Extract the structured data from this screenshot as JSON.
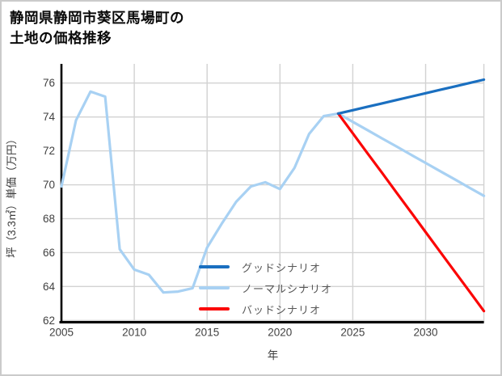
{
  "title": {
    "line1": "静岡県静岡市葵区馬場町の",
    "line2": "土地の価格推移"
  },
  "axes": {
    "x_label": "年",
    "y_label": "坪（3.3㎡）単価（万円）",
    "x_ticks": [
      2005,
      2010,
      2015,
      2020,
      2025,
      2030
    ],
    "y_ticks": [
      62,
      64,
      66,
      68,
      70,
      72,
      74,
      76
    ]
  },
  "legend": {
    "items": [
      {
        "label": "グッドシナリオ",
        "color": "#1a6fc0"
      },
      {
        "label": "ノーマルシナリオ",
        "color": "#a8d1f3"
      },
      {
        "label": "バッドシナリオ",
        "color": "#fb0505"
      }
    ]
  },
  "colors": {
    "grid": "#d2d2d2",
    "spine": "#000000",
    "tick_text": "#414141",
    "background": "#ffffff"
  },
  "chart_data": {
    "type": "line",
    "title": "静岡県静岡市葵区馬場町の土地の価格推移",
    "xlabel": "年",
    "ylabel": "坪（3.3㎡）単価（万円）",
    "x_range": [
      2005,
      2034
    ],
    "ylim": [
      62,
      77.2
    ],
    "grid": true,
    "legend_position": "lower-center-inside",
    "series": [
      {
        "name": "ノーマルシナリオ",
        "color": "#a8d1f3",
        "x": [
          2005,
          2006,
          2007,
          2008,
          2009,
          2010,
          2011,
          2012,
          2013,
          2014,
          2015,
          2016,
          2017,
          2018,
          2019,
          2020,
          2021,
          2022,
          2023,
          2024,
          2025,
          2026,
          2027,
          2028,
          2029,
          2030,
          2031,
          2032,
          2033,
          2034
        ],
        "values": [
          69.9,
          73.8,
          75.5,
          75.2,
          66.2,
          65.0,
          64.7,
          63.65,
          63.7,
          63.9,
          66.3,
          67.7,
          69.0,
          69.9,
          70.15,
          69.75,
          71.0,
          73.0,
          74.05,
          74.2,
          73.71,
          73.23,
          72.74,
          72.26,
          71.77,
          71.29,
          70.8,
          70.32,
          69.83,
          69.35
        ]
      },
      {
        "name": "バッドシナリオ",
        "color": "#fb0505",
        "x": [
          2024,
          2025,
          2026,
          2027,
          2028,
          2029,
          2030,
          2031,
          2032,
          2033,
          2034
        ],
        "values": [
          74.2,
          73.04,
          71.87,
          70.71,
          69.54,
          68.38,
          67.21,
          66.05,
          64.88,
          63.72,
          62.55
        ]
      },
      {
        "name": "グッドシナリオ",
        "color": "#1a6fc0",
        "x": [
          2024,
          2025,
          2026,
          2027,
          2028,
          2029,
          2030,
          2031,
          2032,
          2033,
          2034
        ],
        "values": [
          74.2,
          74.4,
          74.6,
          74.8,
          75.0,
          75.2,
          75.4,
          75.6,
          75.8,
          76.0,
          76.2
        ]
      }
    ]
  }
}
